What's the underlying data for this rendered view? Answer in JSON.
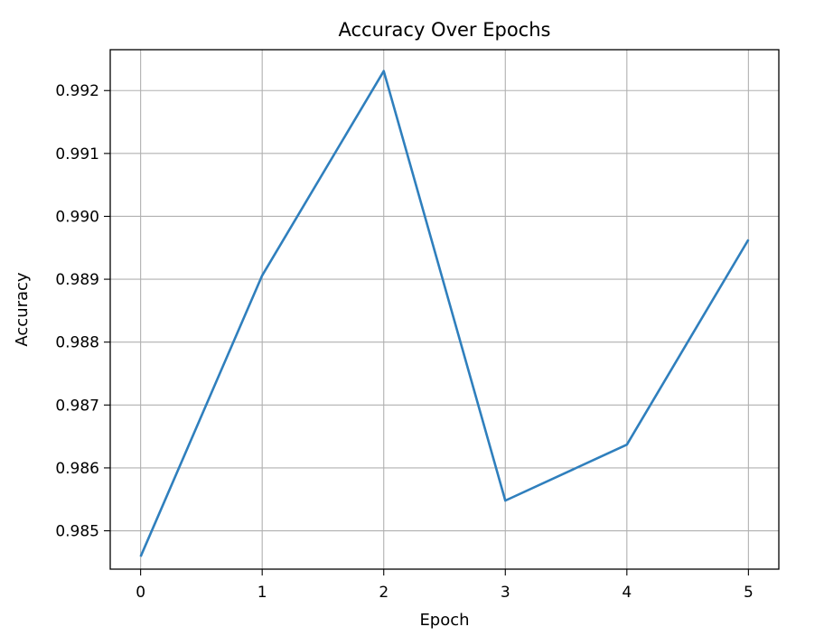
{
  "chart_data": {
    "type": "line",
    "title": "Accuracy Over Epochs",
    "xlabel": "Epoch",
    "ylabel": "Accuracy",
    "x": [
      0,
      1,
      2,
      3,
      4,
      5
    ],
    "series": [
      {
        "values": [
          0.98459,
          0.98906,
          0.99231,
          0.98548,
          0.98637,
          0.98963
        ],
        "color": "#2f7fbd"
      }
    ],
    "xticks": [
      "0",
      "1",
      "2",
      "3",
      "4",
      "5"
    ],
    "yticks": [
      "0.985",
      "0.986",
      "0.987",
      "0.988",
      "0.989",
      "0.990",
      "0.991",
      "0.992"
    ],
    "xlim": [
      -0.25,
      5.25
    ],
    "ylim": [
      0.98439,
      0.99265
    ],
    "grid": true
  }
}
